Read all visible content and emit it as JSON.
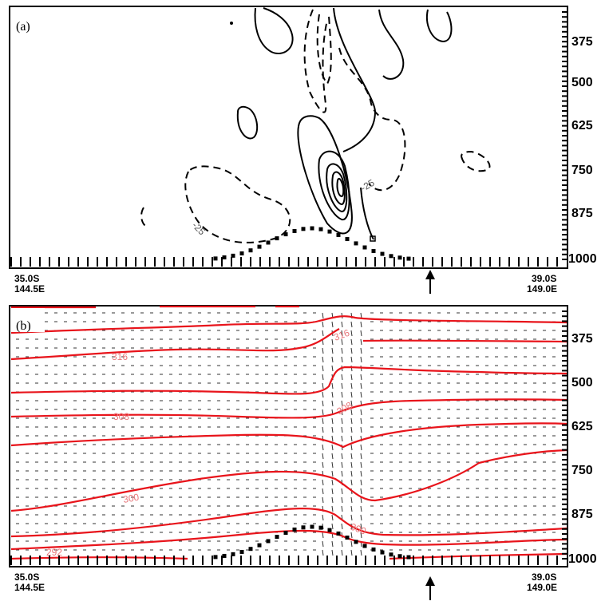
{
  "chart_data": [
    {
      "type": "contour",
      "panel_label": "(a)",
      "y_axis": {
        "label": "",
        "ticks": [
          "375",
          "500",
          "625",
          "750",
          "875",
          "1000"
        ],
        "inverted": true,
        "side": "right"
      },
      "x_axis": {
        "left_lat": "35.0S",
        "left_lon": "144.5E",
        "right_lat": "39.0S",
        "right_lon": "149.0E"
      },
      "contour_labels": [
        "-25",
        "-25"
      ],
      "negative_contours_dashed": true,
      "terrain": "dotted",
      "marker": "upward arrow"
    },
    {
      "type": "contour",
      "panel_label": "(b)",
      "y_axis": {
        "label": "",
        "ticks": [
          "375",
          "500",
          "625",
          "750",
          "875",
          "1000"
        ],
        "inverted": true,
        "side": "right"
      },
      "x_axis": {
        "left_lat": "35.0S",
        "left_lon": "144.5E",
        "right_lat": "39.0S",
        "right_lon": "149.0E"
      },
      "contour_labels": [
        "316",
        "316",
        "308",
        "308",
        "300",
        "300",
        "292"
      ],
      "contour_color": "#e8141b",
      "wind_vectors": true,
      "terrain": "dotted",
      "marker": "upward arrow"
    }
  ]
}
